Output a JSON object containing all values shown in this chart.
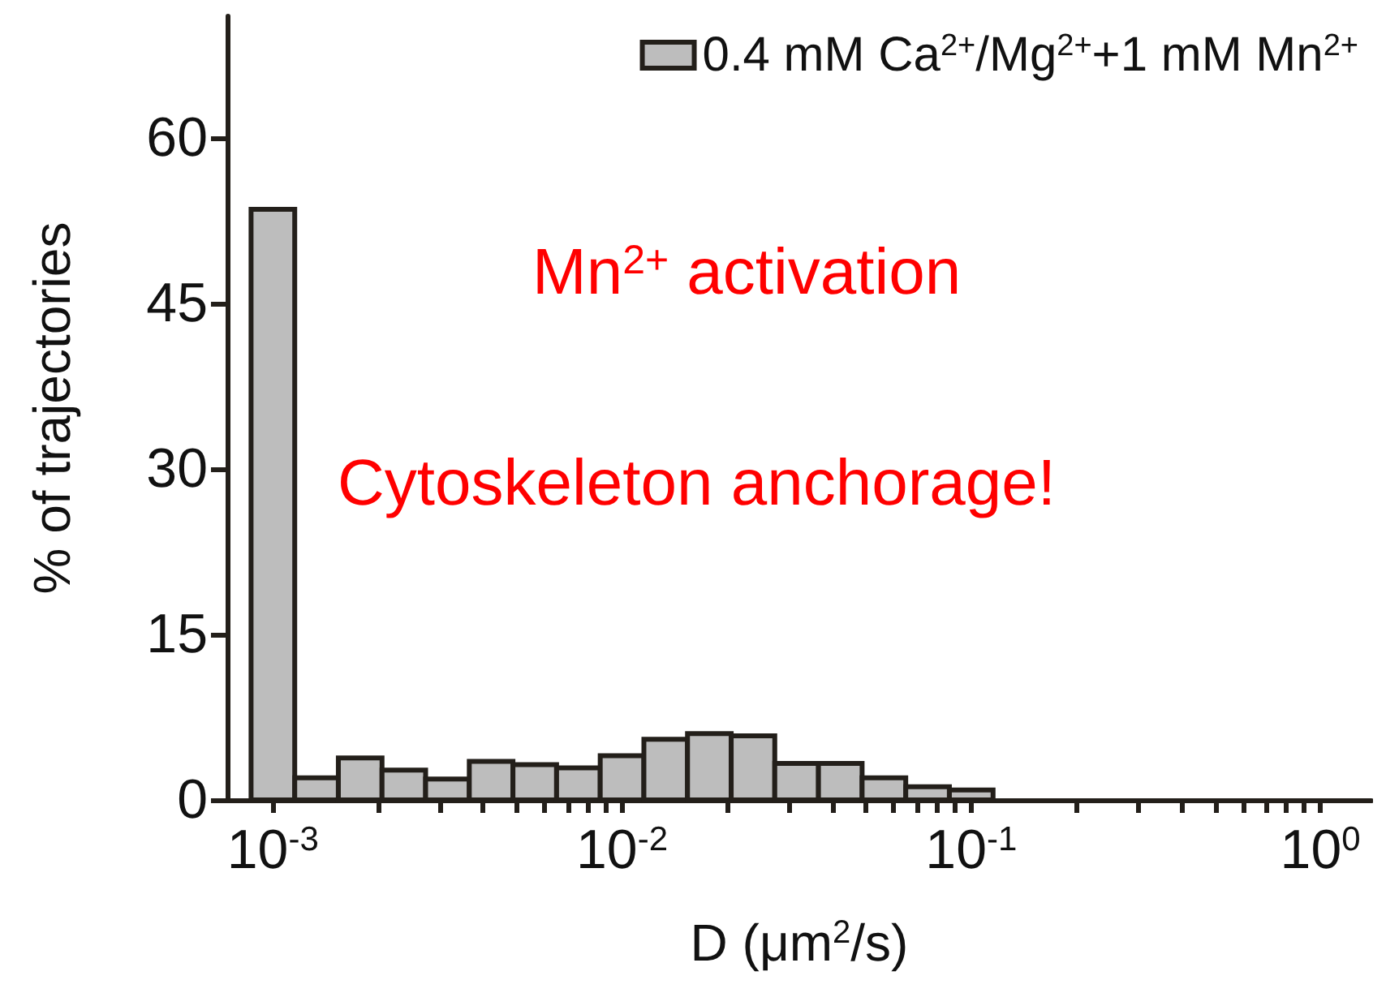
{
  "chart_data": {
    "type": "histogram",
    "xlabel": "D (μm$^{2}$/s)",
    "ylabel": "% of trajectories",
    "bins": [
      0.000866,
      0.001155,
      0.00154,
      0.002054,
      0.002738,
      0.003652,
      0.00487,
      0.006494,
      0.00866,
      0.01155,
      0.0154,
      0.02054,
      0.02738,
      0.03652,
      0.0487,
      0.06494,
      0.0866,
      0.1155
    ],
    "series": [
      {
        "name": "0.4 mM Ca$^{2+}$/Mg$^{2+}$+1 mM Mn$^{2+}$",
        "color": "#bdbdbd",
        "values": [
          53.5,
          2,
          3.8,
          2.7,
          1.9,
          3.5,
          3.2,
          2.9,
          4,
          5.5,
          6,
          5.8,
          3.3,
          3.3,
          2,
          1.2,
          0.9
        ]
      }
    ],
    "log": "x",
    "xlim": [
      0.00074,
      1.4
    ],
    "xticks": [
      {
        "value": 0.001,
        "label": "10$^{-3}$"
      },
      {
        "value": 0.002,
        "label": null
      },
      {
        "value": 0.003,
        "label": null
      },
      {
        "value": 0.004,
        "label": null
      },
      {
        "value": 0.005,
        "label": null
      },
      {
        "value": 0.006,
        "label": null
      },
      {
        "value": 0.007,
        "label": null
      },
      {
        "value": 0.008,
        "label": null
      },
      {
        "value": 0.009,
        "label": null
      },
      {
        "value": 0.01,
        "label": "10$^{-2}$"
      },
      {
        "value": 0.02,
        "label": null
      },
      {
        "value": 0.03,
        "label": null
      },
      {
        "value": 0.04,
        "label": null
      },
      {
        "value": 0.05,
        "label": null
      },
      {
        "value": 0.06,
        "label": null
      },
      {
        "value": 0.07,
        "label": null
      },
      {
        "value": 0.08,
        "label": null
      },
      {
        "value": 0.09,
        "label": null
      },
      {
        "value": 0.1,
        "label": "10$^{-1}$"
      },
      {
        "value": 0.2,
        "label": null
      },
      {
        "value": 0.3,
        "label": null
      },
      {
        "value": 0.4,
        "label": null
      },
      {
        "value": 0.5,
        "label": null
      },
      {
        "value": 0.6,
        "label": null
      },
      {
        "value": 0.7,
        "label": null
      },
      {
        "value": 0.8,
        "label": null
      },
      {
        "value": 0.9,
        "label": null
      },
      {
        "value": 1,
        "label": "10$^{0}$"
      }
    ],
    "ylim": [
      0,
      71
    ],
    "yticks": [
      0,
      15,
      30,
      45,
      60
    ],
    "grid": false,
    "legend": "top right",
    "annotations": [
      "Mn$^{2+}$ activation",
      "Cytoskeleton anchorage!"
    ]
  }
}
